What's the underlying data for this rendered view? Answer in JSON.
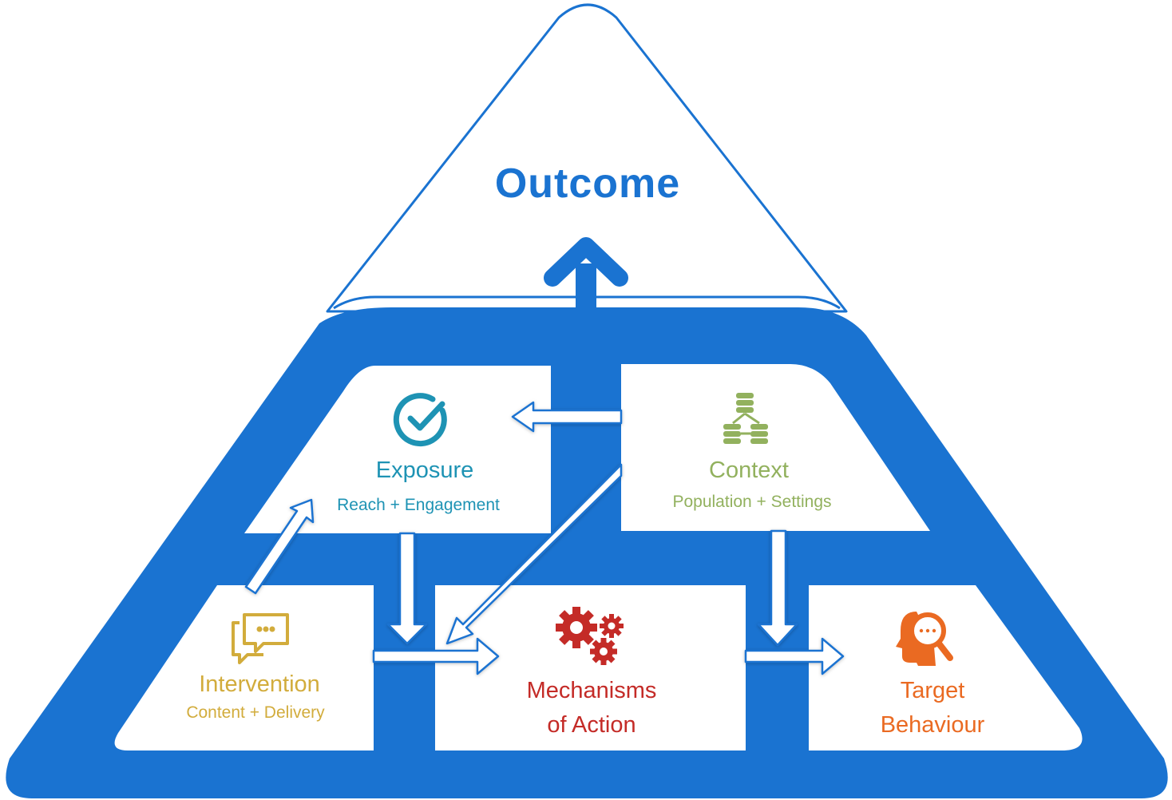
{
  "outcome": {
    "label": "Outcome"
  },
  "nodes": {
    "exposure": {
      "title": "Exposure",
      "subtitle": "Reach + Engagement",
      "icon": "check-circle-icon",
      "color": "#1e93b4"
    },
    "context": {
      "title": "Context",
      "subtitle": "Population + Settings",
      "icon": "database-network-icon",
      "color": "#92b15e"
    },
    "intervention": {
      "title": "Intervention",
      "subtitle": "Content + Delivery",
      "icon": "chat-bubbles-icon",
      "color": "#d2ac3c"
    },
    "mechanisms": {
      "title_line1": "Mechanisms",
      "title_line2": "of Action",
      "icon": "gears-icon",
      "color": "#c42b27"
    },
    "target": {
      "title_line1": "Target",
      "title_line2": "Behaviour",
      "icon": "head-search-icon",
      "color": "#ea6a22"
    }
  },
  "colors": {
    "frame_blue": "#1a73d1",
    "outcome_blue": "#1a73d1",
    "arrow_outline": "#1a73d1"
  }
}
